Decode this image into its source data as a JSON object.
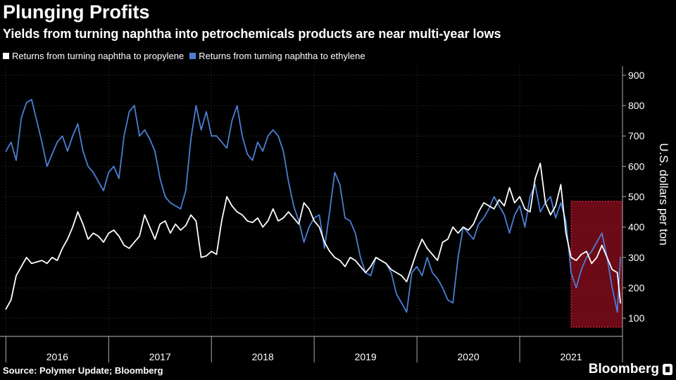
{
  "header": {
    "title": "Plunging Profits",
    "subtitle": "Yields from turning naphtha into petrochemicals products are near multi-year lows"
  },
  "footer": {
    "source": "Source: Polymer Update; Bloomberg",
    "brand": "Bloomberg"
  },
  "colors": {
    "background": "#000000",
    "propylene": "#ffffff",
    "ethylene": "#4a7fd4",
    "highlight_fill": "#8a0d1e",
    "highlight_border": "#e0263f",
    "gridline": "#3a3a3a",
    "highlight_propylene": "#ffb3b3"
  },
  "chart_data": {
    "type": "line",
    "title": "Plunging Profits",
    "ylabel": "U.S. dollars per ton",
    "xlabel": "",
    "ylim": [
      40,
      930
    ],
    "xlim": [
      2015.97,
      2022.0
    ],
    "yticks": [
      100,
      200,
      300,
      400,
      500,
      600,
      700,
      800,
      900
    ],
    "ytick_labels": [
      "100",
      "200",
      "300",
      "400",
      "500",
      "600",
      "700",
      "800",
      "900"
    ],
    "year_labels": [
      "2016",
      "2017",
      "2018",
      "2019",
      "2020",
      "2021"
    ],
    "legend_position": "top-left",
    "highlight_region": {
      "x_start": 2021.5,
      "x_end": 2022.0,
      "y_start": 70,
      "y_end": 485
    },
    "series": [
      {
        "name": "Returns from turning naphtha to propylene",
        "points": [
          [
            2016.0,
            130
          ],
          [
            2016.05,
            160
          ],
          [
            2016.1,
            240
          ],
          [
            2016.15,
            270
          ],
          [
            2016.2,
            300
          ],
          [
            2016.25,
            280
          ],
          [
            2016.3,
            285
          ],
          [
            2016.35,
            290
          ],
          [
            2016.4,
            280
          ],
          [
            2016.45,
            300
          ],
          [
            2016.5,
            290
          ],
          [
            2016.55,
            330
          ],
          [
            2016.6,
            360
          ],
          [
            2016.65,
            400
          ],
          [
            2016.7,
            450
          ],
          [
            2016.75,
            410
          ],
          [
            2016.8,
            360
          ],
          [
            2016.85,
            380
          ],
          [
            2016.9,
            370
          ],
          [
            2016.95,
            350
          ],
          [
            2017.0,
            380
          ],
          [
            2017.05,
            390
          ],
          [
            2017.1,
            370
          ],
          [
            2017.15,
            340
          ],
          [
            2017.2,
            330
          ],
          [
            2017.25,
            350
          ],
          [
            2017.3,
            370
          ],
          [
            2017.35,
            440
          ],
          [
            2017.4,
            400
          ],
          [
            2017.45,
            360
          ],
          [
            2017.5,
            410
          ],
          [
            2017.55,
            420
          ],
          [
            2017.6,
            380
          ],
          [
            2017.65,
            410
          ],
          [
            2017.7,
            390
          ],
          [
            2017.75,
            405
          ],
          [
            2017.8,
            440
          ],
          [
            2017.85,
            420
          ],
          [
            2017.9,
            300
          ],
          [
            2017.95,
            305
          ],
          [
            2018.0,
            320
          ],
          [
            2018.05,
            310
          ],
          [
            2018.1,
            420
          ],
          [
            2018.15,
            500
          ],
          [
            2018.2,
            470
          ],
          [
            2018.25,
            450
          ],
          [
            2018.3,
            440
          ],
          [
            2018.35,
            420
          ],
          [
            2018.4,
            415
          ],
          [
            2018.45,
            430
          ],
          [
            2018.5,
            400
          ],
          [
            2018.55,
            420
          ],
          [
            2018.6,
            460
          ],
          [
            2018.65,
            420
          ],
          [
            2018.7,
            430
          ],
          [
            2018.75,
            450
          ],
          [
            2018.8,
            430
          ],
          [
            2018.85,
            410
          ],
          [
            2018.9,
            480
          ],
          [
            2018.95,
            460
          ],
          [
            2019.0,
            420
          ],
          [
            2019.05,
            400
          ],
          [
            2019.1,
            350
          ],
          [
            2019.15,
            320
          ],
          [
            2019.2,
            300
          ],
          [
            2019.25,
            290
          ],
          [
            2019.3,
            270
          ],
          [
            2019.35,
            300
          ],
          [
            2019.4,
            290
          ],
          [
            2019.45,
            270
          ],
          [
            2019.5,
            250
          ],
          [
            2019.55,
            270
          ],
          [
            2019.6,
            300
          ],
          [
            2019.65,
            290
          ],
          [
            2019.7,
            280
          ],
          [
            2019.75,
            260
          ],
          [
            2019.8,
            250
          ],
          [
            2019.85,
            240
          ],
          [
            2019.9,
            220
          ],
          [
            2019.95,
            270
          ],
          [
            2020.0,
            320
          ],
          [
            2020.05,
            360
          ],
          [
            2020.1,
            330
          ],
          [
            2020.15,
            310
          ],
          [
            2020.2,
            290
          ],
          [
            2020.25,
            350
          ],
          [
            2020.3,
            360
          ],
          [
            2020.35,
            400
          ],
          [
            2020.4,
            380
          ],
          [
            2020.45,
            400
          ],
          [
            2020.5,
            390
          ],
          [
            2020.55,
            410
          ],
          [
            2020.6,
            450
          ],
          [
            2020.65,
            480
          ],
          [
            2020.7,
            470
          ],
          [
            2020.75,
            460
          ],
          [
            2020.8,
            490
          ],
          [
            2020.85,
            470
          ],
          [
            2020.9,
            530
          ],
          [
            2020.95,
            480
          ],
          [
            2021.0,
            500
          ],
          [
            2021.05,
            460
          ],
          [
            2021.1,
            450
          ],
          [
            2021.15,
            560
          ],
          [
            2021.2,
            610
          ],
          [
            2021.25,
            480
          ],
          [
            2021.3,
            440
          ],
          [
            2021.35,
            470
          ],
          [
            2021.4,
            540
          ],
          [
            2021.45,
            380
          ],
          [
            2021.5,
            300
          ],
          [
            2021.55,
            290
          ],
          [
            2021.6,
            310
          ],
          [
            2021.65,
            320
          ],
          [
            2021.7,
            280
          ],
          [
            2021.75,
            300
          ],
          [
            2021.8,
            340
          ],
          [
            2021.85,
            300
          ],
          [
            2021.9,
            260
          ],
          [
            2021.95,
            250
          ],
          [
            2021.98,
            150
          ]
        ]
      },
      {
        "name": "Returns from turning naphtha to ethylene",
        "points": [
          [
            2016.0,
            650
          ],
          [
            2016.05,
            680
          ],
          [
            2016.1,
            620
          ],
          [
            2016.15,
            760
          ],
          [
            2016.2,
            810
          ],
          [
            2016.25,
            820
          ],
          [
            2016.3,
            750
          ],
          [
            2016.35,
            680
          ],
          [
            2016.4,
            600
          ],
          [
            2016.45,
            640
          ],
          [
            2016.5,
            680
          ],
          [
            2016.55,
            700
          ],
          [
            2016.6,
            650
          ],
          [
            2016.65,
            700
          ],
          [
            2016.7,
            740
          ],
          [
            2016.75,
            650
          ],
          [
            2016.8,
            600
          ],
          [
            2016.85,
            580
          ],
          [
            2016.9,
            550
          ],
          [
            2016.95,
            520
          ],
          [
            2017.0,
            580
          ],
          [
            2017.05,
            600
          ],
          [
            2017.1,
            560
          ],
          [
            2017.15,
            700
          ],
          [
            2017.2,
            780
          ],
          [
            2017.25,
            800
          ],
          [
            2017.3,
            700
          ],
          [
            2017.35,
            720
          ],
          [
            2017.4,
            690
          ],
          [
            2017.45,
            650
          ],
          [
            2017.5,
            560
          ],
          [
            2017.55,
            500
          ],
          [
            2017.6,
            480
          ],
          [
            2017.65,
            470
          ],
          [
            2017.7,
            460
          ],
          [
            2017.75,
            520
          ],
          [
            2017.8,
            690
          ],
          [
            2017.85,
            800
          ],
          [
            2017.9,
            720
          ],
          [
            2017.95,
            780
          ],
          [
            2018.0,
            700
          ],
          [
            2018.05,
            700
          ],
          [
            2018.1,
            680
          ],
          [
            2018.15,
            660
          ],
          [
            2018.2,
            750
          ],
          [
            2018.25,
            800
          ],
          [
            2018.3,
            700
          ],
          [
            2018.35,
            640
          ],
          [
            2018.4,
            620
          ],
          [
            2018.45,
            680
          ],
          [
            2018.5,
            650
          ],
          [
            2018.55,
            700
          ],
          [
            2018.6,
            720
          ],
          [
            2018.65,
            700
          ],
          [
            2018.7,
            650
          ],
          [
            2018.75,
            550
          ],
          [
            2018.8,
            470
          ],
          [
            2018.85,
            420
          ],
          [
            2018.9,
            350
          ],
          [
            2018.95,
            400
          ],
          [
            2019.0,
            430
          ],
          [
            2019.05,
            440
          ],
          [
            2019.1,
            330
          ],
          [
            2019.15,
            450
          ],
          [
            2019.2,
            580
          ],
          [
            2019.25,
            540
          ],
          [
            2019.3,
            430
          ],
          [
            2019.35,
            420
          ],
          [
            2019.4,
            380
          ],
          [
            2019.45,
            300
          ],
          [
            2019.5,
            250
          ],
          [
            2019.55,
            240
          ],
          [
            2019.6,
            300
          ],
          [
            2019.65,
            290
          ],
          [
            2019.7,
            280
          ],
          [
            2019.75,
            250
          ],
          [
            2019.8,
            180
          ],
          [
            2019.85,
            150
          ],
          [
            2019.9,
            120
          ],
          [
            2019.95,
            250
          ],
          [
            2020.0,
            270
          ],
          [
            2020.05,
            240
          ],
          [
            2020.1,
            300
          ],
          [
            2020.15,
            250
          ],
          [
            2020.2,
            230
          ],
          [
            2020.25,
            200
          ],
          [
            2020.3,
            160
          ],
          [
            2020.35,
            150
          ],
          [
            2020.4,
            300
          ],
          [
            2020.45,
            400
          ],
          [
            2020.5,
            380
          ],
          [
            2020.55,
            360
          ],
          [
            2020.6,
            410
          ],
          [
            2020.65,
            430
          ],
          [
            2020.7,
            460
          ],
          [
            2020.75,
            500
          ],
          [
            2020.8,
            470
          ],
          [
            2020.85,
            440
          ],
          [
            2020.9,
            380
          ],
          [
            2020.95,
            440
          ],
          [
            2021.0,
            470
          ],
          [
            2021.05,
            400
          ],
          [
            2021.1,
            500
          ],
          [
            2021.15,
            540
          ],
          [
            2021.2,
            450
          ],
          [
            2021.25,
            480
          ],
          [
            2021.3,
            500
          ],
          [
            2021.35,
            430
          ],
          [
            2021.4,
            480
          ],
          [
            2021.45,
            420
          ],
          [
            2021.5,
            250
          ],
          [
            2021.55,
            200
          ],
          [
            2021.6,
            260
          ],
          [
            2021.65,
            300
          ],
          [
            2021.7,
            320
          ],
          [
            2021.75,
            350
          ],
          [
            2021.8,
            380
          ],
          [
            2021.85,
            300
          ],
          [
            2021.9,
            200
          ],
          [
            2021.95,
            120
          ],
          [
            2021.98,
            300
          ]
        ]
      }
    ]
  }
}
